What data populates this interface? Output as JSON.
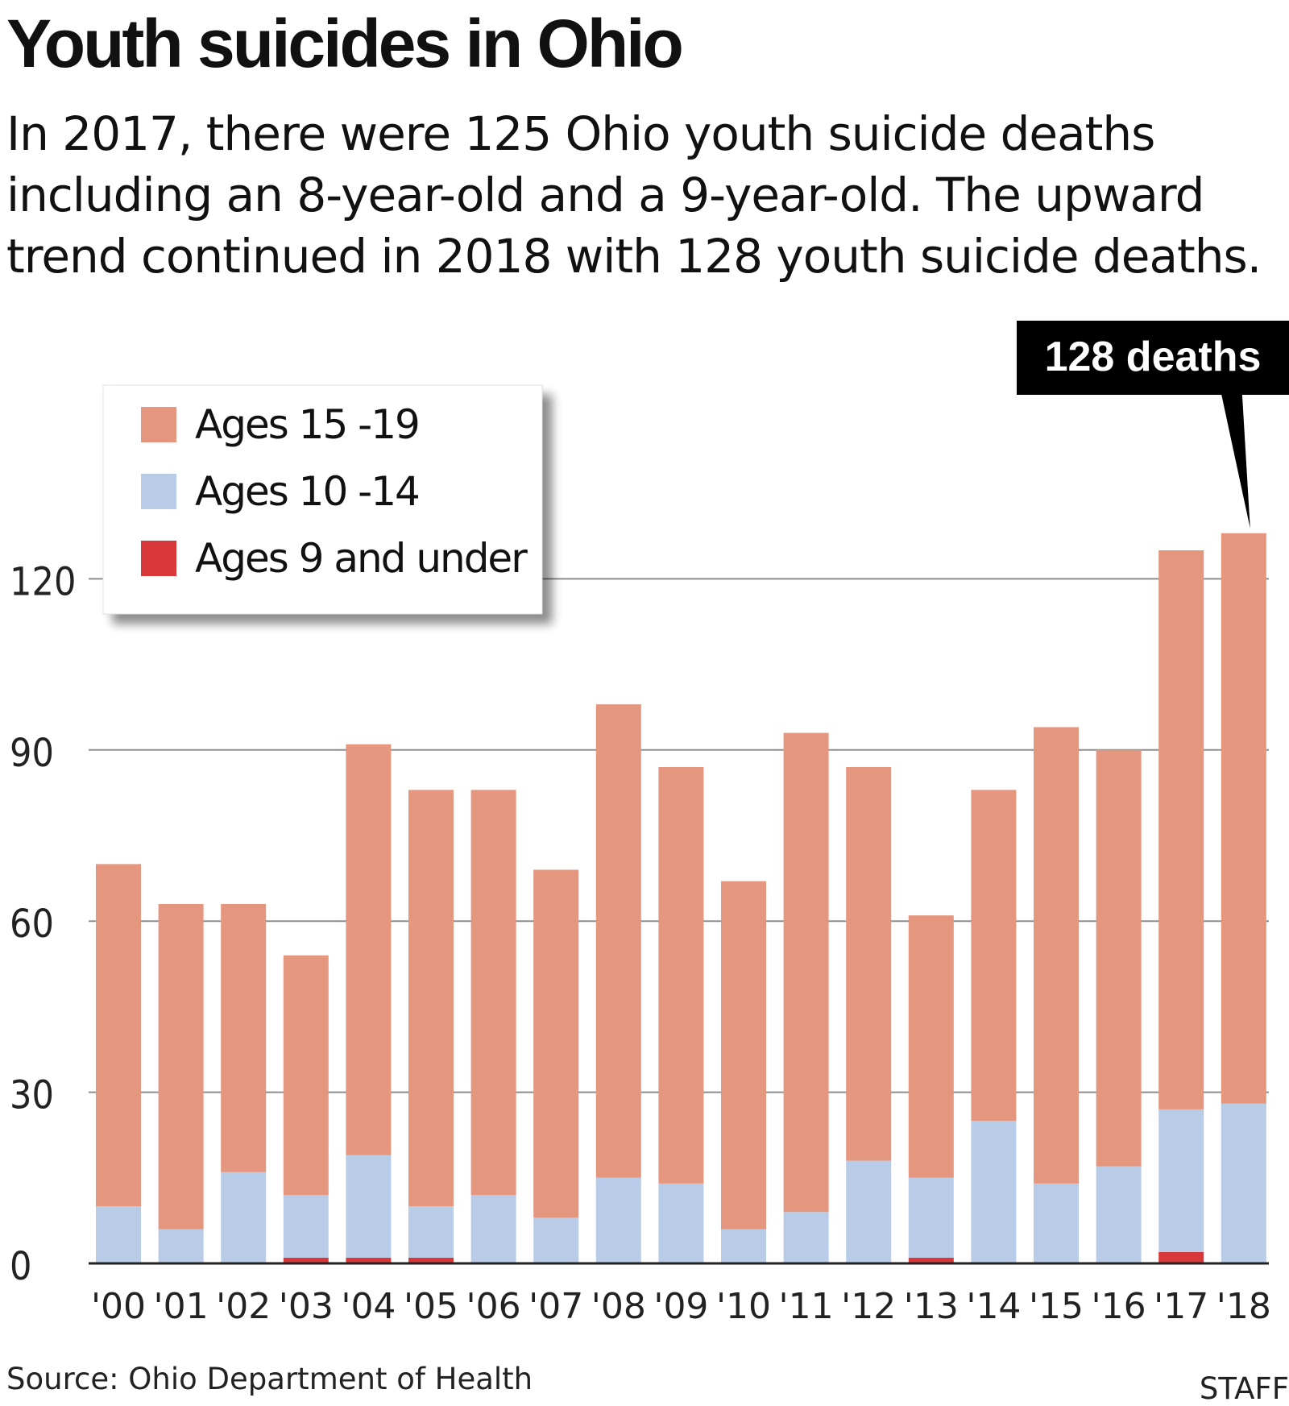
{
  "header": {
    "title": "Youth suicides in Ohio",
    "subtitle": "In 2017, there were 125 Ohio youth suicide deaths including an 8-year-old and a 9-year-old. The upward trend continued in 2018 with 128 youth suicide deaths."
  },
  "footer": {
    "source": "Source: Ohio Department of Health",
    "credit": "STAFF"
  },
  "chart_data": {
    "type": "bar",
    "stacked": true,
    "categories": [
      "'00",
      "'01",
      "'02",
      "'03",
      "'04",
      "'05",
      "'06",
      "'07",
      "'08",
      "'09",
      "'10",
      "'11",
      "'12",
      "'13",
      "'14",
      "'15",
      "'16",
      "'17",
      "'18"
    ],
    "series": [
      {
        "name": "Ages 9 and under",
        "color": "#d9383a",
        "values": [
          0,
          0,
          0,
          1,
          1,
          1,
          0,
          0,
          0,
          0,
          0,
          0,
          0,
          1,
          0,
          0,
          0,
          2,
          0
        ]
      },
      {
        "name": "Ages 10 -14",
        "color": "#b8cce8",
        "values": [
          10,
          6,
          16,
          11,
          18,
          9,
          12,
          8,
          15,
          14,
          6,
          9,
          18,
          14,
          25,
          14,
          17,
          25,
          28
        ]
      },
      {
        "name": "Ages 15 -19",
        "color": "#e5967f",
        "values": [
          60,
          57,
          47,
          42,
          72,
          73,
          71,
          61,
          83,
          73,
          61,
          84,
          69,
          46,
          58,
          80,
          73,
          98,
          100
        ]
      }
    ],
    "yticks": [
      0,
      30,
      60,
      90,
      120
    ],
    "ylim": [
      0,
      128
    ],
    "grid": true,
    "legend_position": "top-left",
    "annotation": {
      "text": "128 deaths",
      "category": "'18",
      "value": 128
    }
  }
}
